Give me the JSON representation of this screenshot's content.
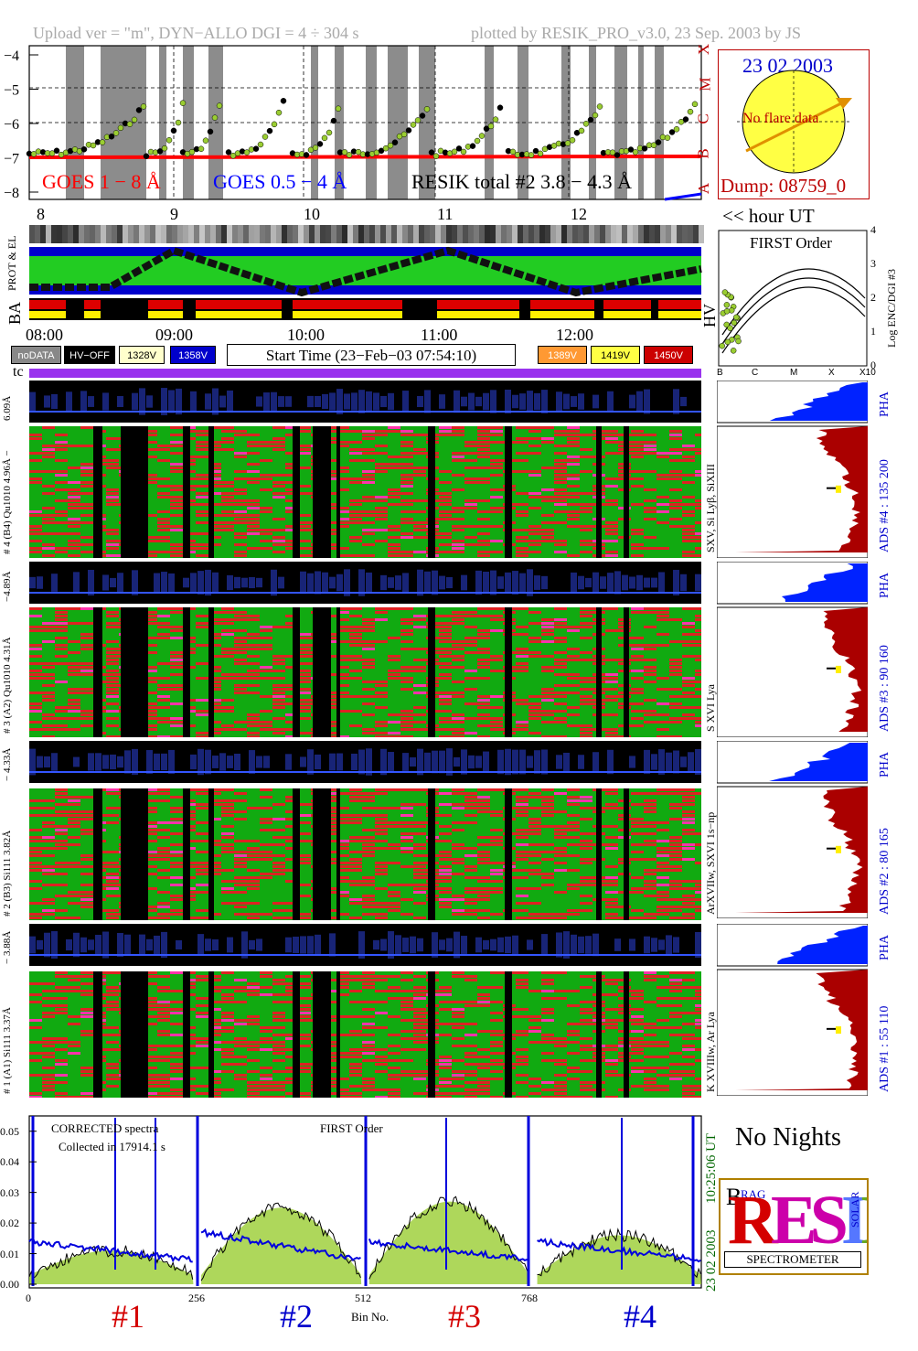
{
  "header": {
    "left": "Upload ver = \"m\", DYN−ALLO DGI =   4 ÷ 304 s",
    "right": "plotted by RESIK_PRO_v3.0, 23 Sep. 2003 by JS"
  },
  "goes": {
    "yticks": [
      "−4",
      "−5",
      "−6",
      "−7",
      "−8"
    ],
    "class_letters": [
      "X",
      "M",
      "C",
      "B",
      "A"
    ],
    "legend_goes18": "GOES 1 − 8 Å",
    "legend_goes054": "GOES 0.5 − 4 Å",
    "legend_resik": "RESIK total #2  3.8 − 4.3 Å",
    "colors": {
      "goes18": "#ff0000",
      "goes054": "#0000ff",
      "resik": "#000000",
      "resik_fill": "#9acd32"
    }
  },
  "sun_box": {
    "date": "23 02 2003",
    "note": "No flare data",
    "dump": "Dump: 08759_0"
  },
  "hour_axis": {
    "ticks": [
      "8",
      "9",
      "10",
      "11",
      "12"
    ],
    "suffix": "<< hour UT"
  },
  "orbit_labels": {
    "prot_el": "PROT & EL",
    "ba": "BA",
    "hv": "HV"
  },
  "time_axis": {
    "ticks": [
      "08:00",
      "09:00",
      "10:00",
      "11:00",
      "12:00"
    ]
  },
  "buttons": {
    "nodata": "noDATA",
    "hvoff": "HV−OFF",
    "v1328": "1328V",
    "v1358": "1358V",
    "start_time": "Start Time (23−Feb−03 07:54:10)",
    "v1389": "1389V",
    "v1419": "1419V",
    "v1450": "1450V"
  },
  "first_order": {
    "title": "FIRST Order",
    "ylabel": "Log ENC/DGI #3",
    "yticks": [
      "4",
      "3",
      "2",
      "1",
      "0"
    ],
    "xticks": [
      "B",
      "C",
      "M",
      "X",
      "X10"
    ]
  },
  "tc_label": "tc",
  "channels": [
    {
      "pha_label": "6.09Å",
      "main_label": "# 4 (B4) Qu1010 4.96Å −",
      "lines": "SXV, Si Lyβ, SiXIII",
      "ads": "ADS #4 :   135 200"
    },
    {
      "pha_label": "−4.89Å",
      "main_label": "# 3 (A2) Qu1010  4.31Å",
      "lines": "S XVI Lya",
      "ads": "ADS #3 :    90 160"
    },
    {
      "pha_label": "− 4.33Å",
      "main_label": "# 2 (B3) Si111  3.82Å",
      "lines": "ArXVIIw, SXVI 1s−np",
      "ads": "ADS #2 :    80 165"
    },
    {
      "pha_label": "− 3.88Å",
      "main_label": "# 1 (A1) Si111  3.37Å",
      "lines": "K XVIIIw, Ar Lya",
      "ads": "ADS #1 :    55 110"
    }
  ],
  "pha_word": "PHA",
  "spectra": {
    "title_left": "CORRECTED spectra",
    "collected": "Collected in 17914.1 s",
    "title_mid": "FIRST Order",
    "yticks": [
      "0.05",
      "0.04",
      "0.03",
      "0.02",
      "0.01",
      "0.00"
    ],
    "xticks": [
      "0",
      "256",
      "512",
      "768"
    ],
    "xlabel": "Bin No.",
    "right_time": "10:25:06 UT",
    "right_date": "23 02 2003",
    "channel_labels": [
      "#1",
      "#2",
      "#3",
      "#4"
    ],
    "colors": {
      "ch1": "#d40000",
      "ch2": "#0000cc",
      "ch3": "#d40000",
      "ch4": "#0000cc"
    }
  },
  "no_nights": "No Nights",
  "logo": {
    "letters": "RESIK",
    "small_b": "B",
    "small_rag": "RAG",
    "solar": "SOLAR",
    "word": "SPECTROMETER"
  }
}
